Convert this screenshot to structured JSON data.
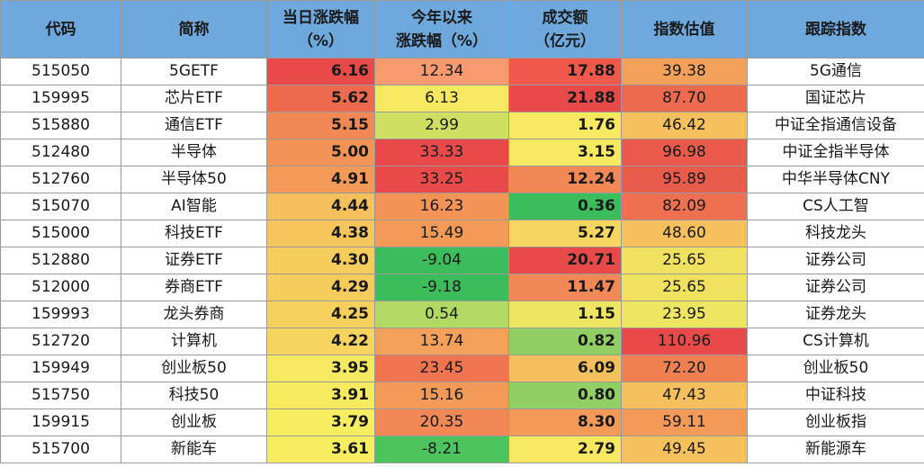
{
  "headers": {
    "code": "代码",
    "name": "简称",
    "change_line1": "当日涨跌幅",
    "change_line2": "（%）",
    "ytd_line1": "今年以来",
    "ytd_line2": "涨跌幅（%）",
    "volume_line1": "成交额",
    "volume_line2": "（亿元）",
    "valuation": "指数估值",
    "tracking": "跟踪指数"
  },
  "header_color": "#6fa8dc",
  "rows": [
    {
      "code": "515050",
      "name": "5GETF",
      "change": "6.16",
      "ytd": "12.34",
      "volume": "17.88",
      "pe": "39.38",
      "index": "5G通信",
      "c_change": "#e84a4a",
      "c_ytd": "#f79a6f",
      "c_vol": "#f0584c",
      "c_pe": "#f3a05a"
    },
    {
      "code": "159995",
      "name": "芯片ETF",
      "change": "5.62",
      "ytd": "6.13",
      "volume": "21.88",
      "pe": "87.70",
      "index": "国证芯片",
      "c_change": "#ee6a4e",
      "c_ytd": "#f6e95f",
      "c_vol": "#e84a4a",
      "c_pe": "#ee6a4e"
    },
    {
      "code": "515880",
      "name": "通信ETF",
      "change": "5.15",
      "ytd": "2.99",
      "volume": "1.76",
      "pe": "46.42",
      "index": "中证全指通信设备",
      "c_change": "#f28856",
      "c_ytd": "#cde062",
      "c_vol": "#f6e95f",
      "c_pe": "#f6c05c"
    },
    {
      "code": "512480",
      "name": "半导体",
      "change": "5.00",
      "ytd": "33.33",
      "volume": "3.15",
      "pe": "96.98",
      "index": "中证全指半导体",
      "c_change": "#f39456",
      "c_ytd": "#e84a4a",
      "c_vol": "#f6e95f",
      "c_pe": "#e95a4c"
    },
    {
      "code": "512760",
      "name": "半导体50",
      "change": "4.91",
      "ytd": "33.25",
      "volume": "12.24",
      "pe": "95.89",
      "index": "中华半导体CNY",
      "c_change": "#f39a58",
      "c_ytd": "#e84a4a",
      "c_vol": "#f28856",
      "c_pe": "#e95c4c"
    },
    {
      "code": "515070",
      "name": "AI智能",
      "change": "4.44",
      "ytd": "16.23",
      "volume": "0.36",
      "pe": "82.09",
      "index": "CS人工智",
      "c_change": "#f6c05c",
      "c_ytd": "#f39456",
      "c_vol": "#3cbd5c",
      "c_pe": "#ee7050"
    },
    {
      "code": "515000",
      "name": "科技ETF",
      "change": "4.38",
      "ytd": "15.49",
      "volume": "5.27",
      "pe": "48.60",
      "index": "科技龙头",
      "c_change": "#f6c65c",
      "c_ytd": "#f39a58",
      "c_vol": "#f6d65e",
      "c_pe": "#f6c05c"
    },
    {
      "code": "512880",
      "name": "证券ETF",
      "change": "4.30",
      "ytd": "-9.04",
      "volume": "20.71",
      "pe": "25.65",
      "index": "证券公司",
      "c_change": "#f6cc5d",
      "c_ytd": "#3cbd5c",
      "c_vol": "#e84a4a",
      "c_pe": "#f0e15e"
    },
    {
      "code": "512000",
      "name": "券商ETF",
      "change": "4.29",
      "ytd": "-9.18",
      "volume": "11.47",
      "pe": "25.65",
      "index": "证券公司",
      "c_change": "#f6cc5d",
      "c_ytd": "#3cbd5c",
      "c_vol": "#f28856",
      "c_pe": "#f0e15e"
    },
    {
      "code": "159993",
      "name": "龙头券商",
      "change": "4.25",
      "ytd": "0.54",
      "volume": "1.15",
      "pe": "23.95",
      "index": "证券龙头",
      "c_change": "#f6d05d",
      "c_ytd": "#b0da64",
      "c_vol": "#eee560",
      "c_pe": "#eee560"
    },
    {
      "code": "512720",
      "name": "计算机",
      "change": "4.22",
      "ytd": "13.74",
      "volume": "0.82",
      "pe": "110.96",
      "index": "CS计算机",
      "c_change": "#f6d45e",
      "c_ytd": "#f3a05a",
      "c_vol": "#8fcf63",
      "c_pe": "#e84a4a"
    },
    {
      "code": "159949",
      "name": "创业板50",
      "change": "3.95",
      "ytd": "23.45",
      "volume": "6.09",
      "pe": "72.20",
      "index": "创业板50",
      "c_change": "#f6e85f",
      "c_ytd": "#f0744f",
      "c_vol": "#f6c05c",
      "c_pe": "#f08050"
    },
    {
      "code": "515750",
      "name": "科技50",
      "change": "3.91",
      "ytd": "15.16",
      "volume": "0.80",
      "pe": "47.43",
      "index": "中证科技",
      "c_change": "#f6ea5f",
      "c_ytd": "#f39a58",
      "c_vol": "#8fcf63",
      "c_pe": "#f6c05c"
    },
    {
      "code": "159915",
      "name": "创业板",
      "change": "3.79",
      "ytd": "20.35",
      "volume": "8.30",
      "pe": "59.11",
      "index": "创业板指",
      "c_change": "#f6ee60",
      "c_ytd": "#f28856",
      "c_vol": "#f39a58",
      "c_pe": "#f39a58"
    },
    {
      "code": "515700",
      "name": "新能车",
      "change": "3.61",
      "ytd": "-8.21",
      "volume": "2.79",
      "pe": "49.45",
      "index": "新能源车",
      "c_change": "#f6ee60",
      "c_ytd": "#4cc35c",
      "c_vol": "#f6e95f",
      "c_pe": "#f6c05c"
    }
  ]
}
